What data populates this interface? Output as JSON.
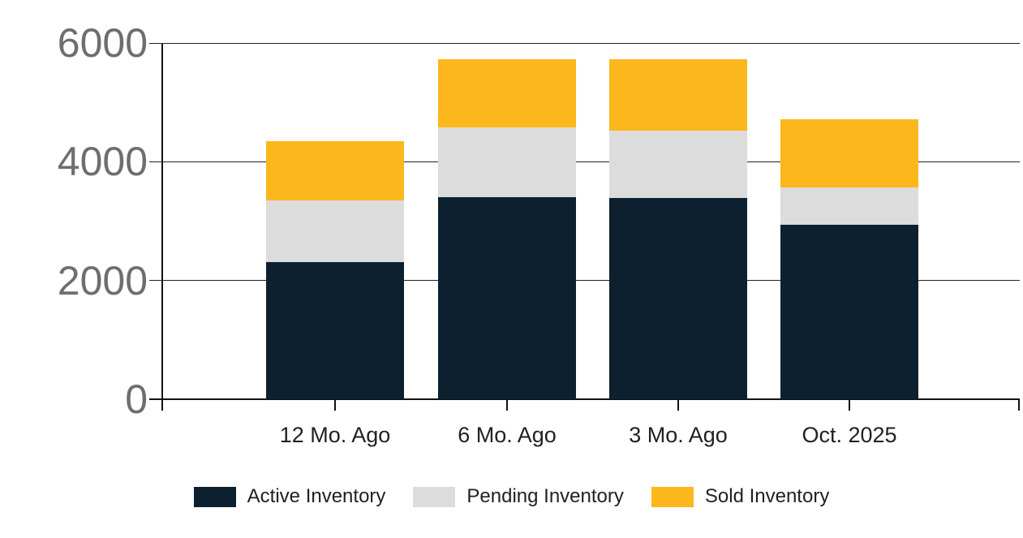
{
  "chart_data": {
    "type": "bar",
    "stacked": true,
    "categories": [
      "12 Mo. Ago",
      "6 Mo. Ago",
      "3 Mo. Ago",
      "Oct. 2025"
    ],
    "series": [
      {
        "name": "Active Inventory",
        "color": "#0d2030",
        "values": [
          2310,
          3400,
          3390,
          2940
        ]
      },
      {
        "name": "Pending Inventory",
        "color": "#dcdcdc",
        "values": [
          1040,
          1180,
          1140,
          630
        ]
      },
      {
        "name": "Sold Inventory",
        "color": "#fbb71c",
        "values": [
          1000,
          1150,
          1200,
          1150
        ]
      }
    ],
    "stack_totals": [
      4350,
      5730,
      5730,
      4720
    ],
    "title": "",
    "xlabel": "",
    "ylabel": "",
    "ylim": [
      0,
      6000
    ],
    "yticks": [
      0,
      2000,
      4000,
      6000
    ],
    "grid": true,
    "legend_position": "bottom"
  },
  "colors": {
    "background": "#ffffff",
    "axis_line": "#111111",
    "grid_line": "#222222",
    "y_tick_label": "#6d6e71",
    "category_label": "#1e2023",
    "legend_label": "#1e2023"
  }
}
